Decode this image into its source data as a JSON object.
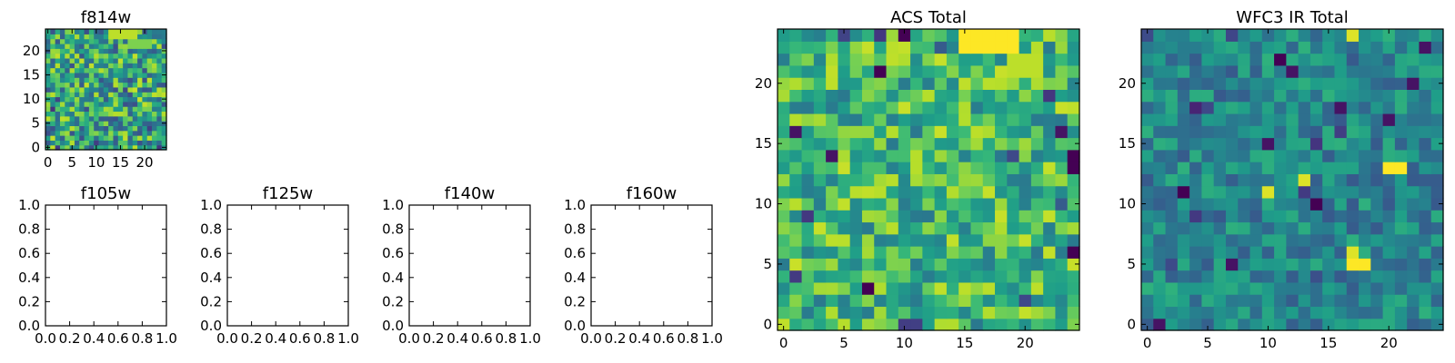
{
  "figure": {
    "background": "#ffffff"
  },
  "chart_data": [
    {
      "type": "heatmap",
      "title": "f814w",
      "grid_size": 25,
      "colormap": "viridis",
      "x_ticks": [
        0,
        5,
        10,
        15,
        20
      ],
      "y_ticks": [
        0,
        5,
        10,
        15,
        20
      ],
      "xlim": [
        -0.5,
        24.5
      ],
      "ylim": [
        -0.5,
        24.5
      ],
      "grid": false,
      "features": [
        {
          "x": [
            13,
            18
          ],
          "y": [
            23,
            24
          ],
          "level": 0.9
        },
        {
          "x": [
            17,
            21
          ],
          "y": [
            21,
            22
          ],
          "level": 0.8
        }
      ]
    },
    {
      "type": "empty",
      "title": "f105w",
      "xlim": [
        0.0,
        1.0
      ],
      "ylim": [
        0.0,
        1.0
      ],
      "x_ticks": [
        "0.0",
        "0.2",
        "0.4",
        "0.6",
        "0.8",
        "1.0"
      ],
      "y_ticks": [
        "0.0",
        "0.2",
        "0.4",
        "0.6",
        "0.8",
        "1.0"
      ]
    },
    {
      "type": "empty",
      "title": "f125w",
      "xlim": [
        0.0,
        1.0
      ],
      "ylim": [
        0.0,
        1.0
      ],
      "x_ticks": [
        "0.0",
        "0.2",
        "0.4",
        "0.6",
        "0.8",
        "1.0"
      ],
      "y_ticks": [
        "0.0",
        "0.2",
        "0.4",
        "0.6",
        "0.8",
        "1.0"
      ]
    },
    {
      "type": "empty",
      "title": "f140w",
      "xlim": [
        0.0,
        1.0
      ],
      "ylim": [
        0.0,
        1.0
      ],
      "x_ticks": [
        "0.0",
        "0.2",
        "0.4",
        "0.6",
        "0.8",
        "1.0"
      ],
      "y_ticks": [
        "0.0",
        "0.2",
        "0.4",
        "0.6",
        "0.8",
        "1.0"
      ]
    },
    {
      "type": "empty",
      "title": "f160w",
      "xlim": [
        0.0,
        1.0
      ],
      "ylim": [
        0.0,
        1.0
      ],
      "x_ticks": [
        "0.0",
        "0.2",
        "0.4",
        "0.6",
        "0.8",
        "1.0"
      ],
      "y_ticks": [
        "0.0",
        "0.2",
        "0.4",
        "0.6",
        "0.8",
        "1.0"
      ]
    },
    {
      "type": "heatmap",
      "title": "ACS Total",
      "grid_size": 25,
      "colormap": "viridis",
      "x_ticks": [
        0,
        5,
        10,
        15,
        20
      ],
      "y_ticks": [
        0,
        5,
        10,
        15,
        20
      ],
      "xlim": [
        -0.5,
        24.5
      ],
      "ylim": [
        -0.5,
        24.5
      ],
      "grid": false,
      "features": [
        {
          "x": [
            15,
            19
          ],
          "y": [
            23,
            24
          ],
          "level": 1.0
        },
        {
          "x": [
            19,
            21
          ],
          "y": [
            21,
            22
          ],
          "level": 0.9
        },
        {
          "x": [
            13,
            13
          ],
          "y": [
            14,
            14
          ],
          "level": 0.85
        },
        {
          "x": [
            21,
            21
          ],
          "y": [
            3,
            3
          ],
          "level": 0.9
        },
        {
          "x": [
            7,
            7
          ],
          "y": [
            7,
            7
          ],
          "level": 0.85
        },
        {
          "x": [
            10,
            10
          ],
          "y": [
            24,
            24
          ],
          "level": 0.0
        },
        {
          "x": [
            8,
            8
          ],
          "y": [
            21,
            21
          ],
          "level": 0.0
        },
        {
          "x": [
            24,
            24
          ],
          "y": [
            13,
            14
          ],
          "level": 0.0
        },
        {
          "x": [
            24,
            24
          ],
          "y": [
            6,
            6
          ],
          "level": 0.0
        },
        {
          "x": [
            7,
            7
          ],
          "y": [
            3,
            3
          ],
          "level": 0.0
        },
        {
          "x": [
            1,
            1
          ],
          "y": [
            16,
            16
          ],
          "level": 0.05
        },
        {
          "x": [
            4,
            4
          ],
          "y": [
            14,
            14
          ],
          "level": 0.05
        },
        {
          "x": [
            23,
            23
          ],
          "y": [
            16,
            16
          ],
          "level": 0.05
        }
      ]
    },
    {
      "type": "heatmap",
      "title": "WFC3 IR Total",
      "grid_size": 25,
      "colormap": "viridis",
      "x_ticks": [
        0,
        5,
        10,
        15,
        20
      ],
      "y_ticks": [
        0,
        5,
        10,
        15,
        20
      ],
      "xlim": [
        -0.5,
        24.5
      ],
      "ylim": [
        -0.5,
        24.5
      ],
      "grid": false,
      "features": [
        {
          "x": [
            17,
            18
          ],
          "y": [
            5,
            5
          ],
          "level": 1.0
        },
        {
          "x": [
            17,
            17
          ],
          "y": [
            6,
            6
          ],
          "level": 0.95
        },
        {
          "x": [
            20,
            21
          ],
          "y": [
            13,
            13
          ],
          "level": 1.0
        },
        {
          "x": [
            10,
            10
          ],
          "y": [
            11,
            11
          ],
          "level": 0.95
        },
        {
          "x": [
            13,
            13
          ],
          "y": [
            12,
            12
          ],
          "level": 0.95
        },
        {
          "x": [
            17,
            17
          ],
          "y": [
            24,
            24
          ],
          "level": 0.95
        },
        {
          "x": [
            11,
            11
          ],
          "y": [
            22,
            22
          ],
          "level": 0.0
        },
        {
          "x": [
            3,
            3
          ],
          "y": [
            11,
            11
          ],
          "level": 0.0
        },
        {
          "x": [
            14,
            14
          ],
          "y": [
            10,
            10
          ],
          "level": 0.0
        },
        {
          "x": [
            7,
            7
          ],
          "y": [
            5,
            5
          ],
          "level": 0.05
        },
        {
          "x": [
            10,
            10
          ],
          "y": [
            15,
            15
          ],
          "level": 0.05
        },
        {
          "x": [
            20,
            20
          ],
          "y": [
            17,
            17
          ],
          "level": 0.05
        },
        {
          "x": [
            1,
            1
          ],
          "y": [
            0,
            0
          ],
          "level": 0.05
        },
        {
          "x": [
            12,
            12
          ],
          "y": [
            21,
            21
          ],
          "level": 0.05
        },
        {
          "x": [
            23,
            23
          ],
          "y": [
            23,
            23
          ],
          "level": 0.05
        },
        {
          "x": [
            16,
            16
          ],
          "y": [
            18,
            18
          ],
          "level": 0.05
        },
        {
          "x": [
            22,
            22
          ],
          "y": [
            20,
            20
          ],
          "level": 0.05
        },
        {
          "x": [
            4,
            4
          ],
          "y": [
            18,
            18
          ],
          "level": 0.1
        }
      ]
    }
  ]
}
